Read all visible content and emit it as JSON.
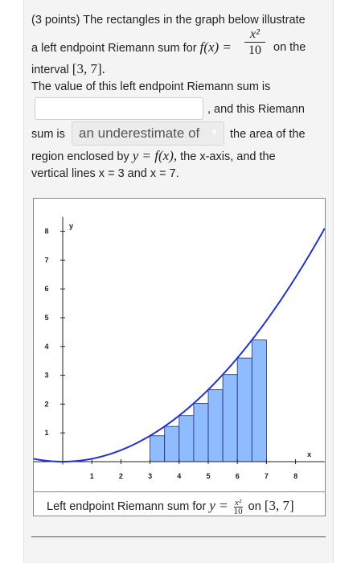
{
  "question": {
    "points": "(3 points)",
    "line1_rest": "The rectangles in the graph below illustrate",
    "line2_prefix": "a left endpoint Riemann sum for",
    "func_lhs": "f(x) =",
    "frac_num": "x²",
    "frac_den": "10",
    "line2_suffix": "on the",
    "line3_prefix": "interval",
    "interval": "[3, 7].",
    "line4": "The value of this left endpoint Riemann sum is",
    "after_answer": ", and this Riemann",
    "sum_is": "sum is",
    "select_value": "an underestimate of",
    "after_select": "the area of the",
    "line7_prefix": "region enclosed by",
    "line7_math": "y = f(x),",
    "line7_suffix": "the x-axis, and the",
    "line8": "vertical lines x = 3 and x = 7."
  },
  "answer_input": {
    "value": "",
    "placeholder": ""
  },
  "graph": {
    "ylabel": "y",
    "xlabel": "x",
    "x_ticks": [
      "1",
      "2",
      "3",
      "4",
      "5",
      "6",
      "7",
      "8"
    ],
    "y_ticks": [
      "1",
      "2",
      "3",
      "4",
      "5",
      "6",
      "7",
      "8"
    ],
    "caption_prefix": "Left endpoint Riemann sum for",
    "caption_y": "y =",
    "caption_num": "x²",
    "caption_den": "10",
    "caption_suffix": "on",
    "caption_interval": "[3, 7]",
    "curve_color": "#2233cc",
    "rect_fill": "#8fbcff",
    "rect_stroke": "#1a2a66"
  },
  "chart_data": {
    "type": "area",
    "function": "x^2/10",
    "interval": [
      3,
      7
    ],
    "x_range": [
      -1,
      9
    ],
    "y_range": [
      -0.1,
      8.5
    ],
    "rectangles": [
      {
        "x_left": 3.0,
        "width": 0.5,
        "height": 0.9
      },
      {
        "x_left": 3.5,
        "width": 0.5,
        "height": 1.225
      },
      {
        "x_left": 4.0,
        "width": 0.5,
        "height": 1.6
      },
      {
        "x_left": 4.5,
        "width": 0.5,
        "height": 2.025
      },
      {
        "x_left": 5.0,
        "width": 0.5,
        "height": 2.5
      },
      {
        "x_left": 5.5,
        "width": 0.5,
        "height": 3.025
      },
      {
        "x_left": 6.0,
        "width": 0.5,
        "height": 3.6
      },
      {
        "x_left": 6.5,
        "width": 0.5,
        "height": 4.225
      }
    ]
  }
}
